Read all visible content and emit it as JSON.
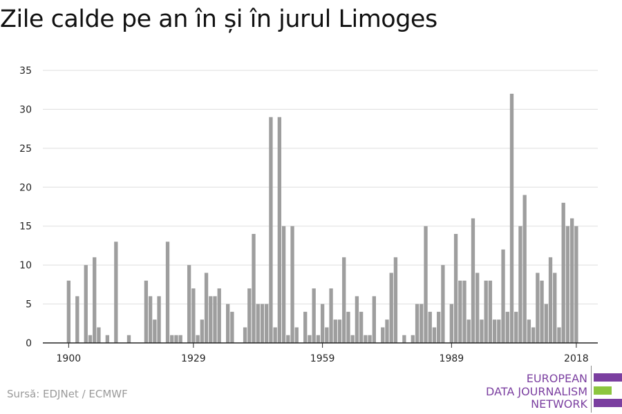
{
  "title": "Zile calde pe an în și în jurul Limoges",
  "source": "Sursă: EDJNet / ECMWF",
  "logo": {
    "line1": "EUROPEAN",
    "line2": "DATA JOURNALISM",
    "line3": "NETWORK",
    "colors": {
      "purple": "#7b3fa0",
      "green": "#8cc63f"
    }
  },
  "colors": {
    "bar": "#9e9e9e",
    "grid": "#dddddd",
    "axis": "#222222"
  },
  "chart_data": {
    "type": "bar",
    "title": "Zile calde pe an în și în jurul Limoges",
    "xlabel": "",
    "ylabel": "",
    "ylim": [
      0,
      35
    ],
    "yticks": [
      0,
      5,
      10,
      15,
      20,
      25,
      30,
      35
    ],
    "xticks": [
      1900,
      1929,
      1959,
      1989,
      2018
    ],
    "xlim": [
      1894,
      2023
    ],
    "grid": true,
    "x": [
      1900,
      1901,
      1902,
      1903,
      1904,
      1905,
      1906,
      1907,
      1908,
      1909,
      1910,
      1911,
      1912,
      1913,
      1914,
      1915,
      1916,
      1917,
      1918,
      1919,
      1920,
      1921,
      1922,
      1923,
      1924,
      1925,
      1926,
      1927,
      1928,
      1929,
      1930,
      1931,
      1932,
      1933,
      1934,
      1935,
      1936,
      1937,
      1938,
      1939,
      1940,
      1941,
      1942,
      1943,
      1944,
      1945,
      1946,
      1947,
      1948,
      1949,
      1950,
      1951,
      1952,
      1953,
      1954,
      1955,
      1956,
      1957,
      1958,
      1959,
      1960,
      1961,
      1962,
      1963,
      1964,
      1965,
      1966,
      1967,
      1968,
      1969,
      1970,
      1971,
      1972,
      1973,
      1974,
      1975,
      1976,
      1977,
      1978,
      1979,
      1980,
      1981,
      1982,
      1983,
      1984,
      1985,
      1986,
      1987,
      1988,
      1989,
      1990,
      1991,
      1992,
      1993,
      1994,
      1995,
      1996,
      1997,
      1998,
      1999,
      2000,
      2001,
      2002,
      2003,
      2004,
      2005,
      2006,
      2007,
      2008,
      2009,
      2010,
      2011,
      2012,
      2013,
      2014,
      2015,
      2016,
      2017,
      2018
    ],
    "values": [
      8,
      0,
      6,
      0,
      10,
      1,
      11,
      2,
      0,
      1,
      0,
      13,
      0,
      0,
      1,
      0,
      0,
      0,
      8,
      6,
      3,
      6,
      0,
      13,
      1,
      1,
      1,
      0,
      10,
      7,
      1,
      3,
      9,
      6,
      6,
      7,
      0,
      5,
      4,
      0,
      0,
      2,
      7,
      14,
      5,
      5,
      5,
      29,
      2,
      29,
      15,
      1,
      15,
      2,
      0,
      4,
      1,
      7,
      1,
      5,
      2,
      7,
      3,
      3,
      11,
      4,
      1,
      6,
      4,
      1,
      1,
      6,
      0,
      2,
      3,
      9,
      11,
      0,
      1,
      0,
      1,
      5,
      5,
      15,
      4,
      2,
      4,
      10,
      0,
      5,
      14,
      8,
      8,
      3,
      16,
      9,
      3,
      8,
      8,
      3,
      3,
      12,
      4,
      32,
      4,
      15,
      19,
      3,
      2,
      9,
      8,
      5,
      11,
      9,
      2,
      18,
      15,
      16,
      15
    ]
  }
}
